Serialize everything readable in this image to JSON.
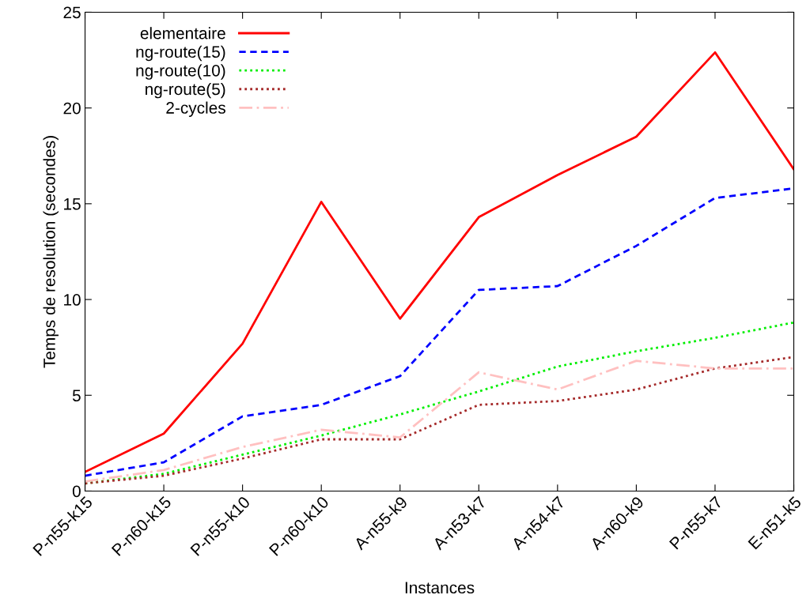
{
  "chart_data": {
    "type": "line",
    "xlabel": "Instances",
    "ylabel": "Temps de resolution (secondes)",
    "categories": [
      "P-n55-k15",
      "P-n60-k15",
      "P-n55-k10",
      "P-n60-k10",
      "A-n55-k9",
      "A-n53-k7",
      "A-n54-k7",
      "A-n60-k9",
      "P-n55-k7",
      "E-n51-k5"
    ],
    "ylim": [
      0,
      25
    ],
    "yticks": [
      0,
      5,
      10,
      15,
      20,
      25
    ],
    "grid": false,
    "legend": "top left",
    "series": [
      {
        "name": "elementaire",
        "color": "#ff0000",
        "line_style": "solid",
        "values": [
          1.0,
          3.0,
          7.7,
          15.1,
          9.0,
          14.3,
          16.5,
          18.5,
          22.9,
          16.8
        ]
      },
      {
        "name": "ng-route(15)",
        "color": "#0000ff",
        "line_style": "dashed",
        "values": [
          0.8,
          1.5,
          3.9,
          4.5,
          6.0,
          10.5,
          10.7,
          12.8,
          15.3,
          15.8
        ]
      },
      {
        "name": "ng-route(10)",
        "color": "#00ee00",
        "line_style": "dotted",
        "values": [
          0.4,
          0.9,
          1.9,
          2.9,
          4.0,
          5.2,
          6.5,
          7.3,
          8.0,
          8.8
        ]
      },
      {
        "name": "ng-route(5)",
        "color": "#a52a2a",
        "line_style": "dotted",
        "values": [
          0.4,
          0.8,
          1.7,
          2.7,
          2.7,
          4.5,
          4.7,
          5.3,
          6.4,
          7.0
        ]
      },
      {
        "name": "2-cycles",
        "color": "#ffc0c0",
        "line_style": "dashdot",
        "values": [
          0.5,
          1.1,
          2.3,
          3.2,
          2.8,
          6.2,
          5.3,
          6.8,
          6.4,
          6.4
        ]
      }
    ]
  }
}
